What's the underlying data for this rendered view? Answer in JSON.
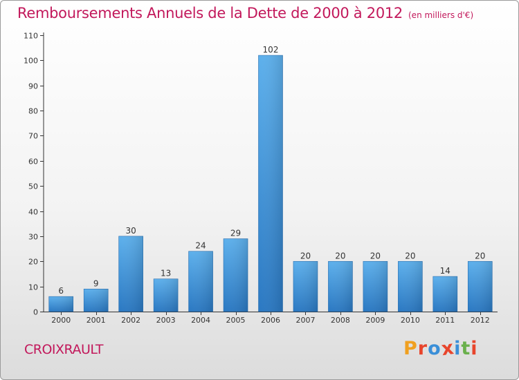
{
  "chart_data": {
    "type": "bar",
    "title": "Remboursements Annuels de la Dette de 2000 à 2012",
    "unit": "(en milliers d'€)",
    "categories": [
      "2000",
      "2001",
      "2002",
      "2003",
      "2004",
      "2005",
      "2006",
      "2007",
      "2008",
      "2009",
      "2010",
      "2011",
      "2012"
    ],
    "values": [
      6,
      9,
      30,
      13,
      24,
      29,
      102,
      20,
      20,
      20,
      20,
      14,
      20
    ],
    "ylim": [
      0,
      110
    ],
    "yticks": [
      0,
      10,
      20,
      30,
      40,
      50,
      60,
      70,
      80,
      90,
      100,
      110
    ],
    "grid": false,
    "data_labels": true,
    "bar_color": "#3a8fd8"
  },
  "footer": {
    "commune": "CROIXRAULT",
    "logo": "Proxiti"
  },
  "colors": {
    "title": "#c2185b",
    "logo_letters": [
      "#f0a020",
      "#e8452c",
      "#3a8fd8",
      "#e8452c",
      "#3a8fd8",
      "#6ab04c",
      "#e8452c"
    ]
  }
}
